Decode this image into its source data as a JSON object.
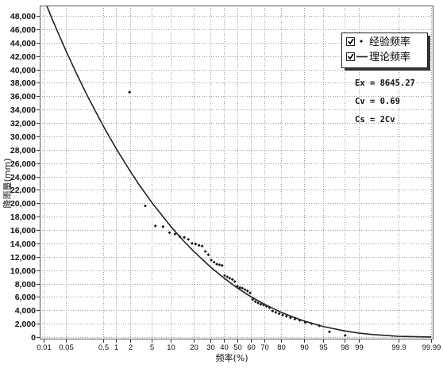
{
  "chart_data": {
    "type": "scatter",
    "xlabel": "频率(%)",
    "ylabel": "降雨量(mm)",
    "x_scale": "normal-probability",
    "xlim": [
      0.01,
      99.99
    ],
    "ylim": [
      0,
      48000
    ],
    "x_ticks": [
      "0.01",
      "0.05",
      "0.5",
      "1",
      "2",
      "5",
      "10",
      "20",
      "30",
      "40",
      "50",
      "60",
      "70",
      "80",
      "90",
      "95",
      "98",
      "99",
      "99.9",
      "99.99"
    ],
    "y_ticks": [
      "0",
      "2,000",
      "4,000",
      "6,000",
      "8,000",
      "10,000",
      "12,000",
      "14,000",
      "16,000",
      "18,000",
      "20,000",
      "22,000",
      "24,000",
      "26,000",
      "28,000",
      "30,000",
      "32,000",
      "34,000",
      "36,000",
      "38,000",
      "40,000",
      "42,000",
      "44,000",
      "46,000",
      "48,000"
    ],
    "grid": true,
    "legend_position": "top-right",
    "series": [
      {
        "name": "经验频率",
        "kind": "points",
        "checked": true,
        "color": "#111111",
        "x": [
          1.92,
          3.85,
          5.77,
          7.69,
          9.62,
          11.54,
          13.46,
          15.38,
          17.31,
          19.23,
          21.15,
          23.08,
          25,
          26.92,
          28.85,
          30.77,
          32.69,
          34.62,
          36.54,
          38.46,
          40.38,
          42.31,
          44.23,
          46.15,
          48.08,
          50,
          51.92,
          53.85,
          55.77,
          57.69,
          59.62,
          61.54,
          63.46,
          65.38,
          67.31,
          69.23,
          71.15,
          73.08,
          75,
          76.92,
          78.85,
          80.77,
          82.69,
          84.62,
          86.54,
          88.46,
          90.38,
          92.31,
          94.23,
          96.15,
          98.08
        ],
        "y": [
          36600,
          19600,
          16600,
          16500,
          15600,
          15400,
          15000,
          14900,
          14600,
          14000,
          13900,
          13700,
          13600,
          12800,
          12300,
          11500,
          11200,
          10900,
          10800,
          10700,
          9200,
          9000,
          8800,
          8600,
          8300,
          7600,
          7400,
          7300,
          7100,
          6900,
          6600,
          5600,
          5300,
          5100,
          4900,
          4800,
          4600,
          4400,
          3900,
          3700,
          3500,
          3300,
          3100,
          2900,
          2700,
          2500,
          2200,
          2000,
          1700,
          800,
          250
        ]
      },
      {
        "name": "理论频率",
        "kind": "line",
        "checked": true,
        "color": "#222222",
        "x": [
          0.01,
          0.02,
          0.05,
          0.1,
          0.2,
          0.5,
          1,
          2,
          3,
          5,
          10,
          15,
          20,
          30,
          40,
          50,
          60,
          70,
          80,
          85,
          90,
          95,
          98,
          99,
          99.5,
          99.9,
          99.99
        ],
        "y": [
          50630,
          47240,
          42770,
          39390,
          36020,
          31550,
          28150,
          24730,
          22710,
          20130,
          16560,
          14400,
          12830,
          10520,
          8790,
          7340,
          6070,
          4880,
          3700,
          3080,
          2400,
          1590,
          920,
          610,
          390,
          110,
          10
        ]
      }
    ],
    "annotations": [
      "Ex = 8645.27",
      "Cv = 0.69",
      "Cs = 2Cv"
    ]
  }
}
